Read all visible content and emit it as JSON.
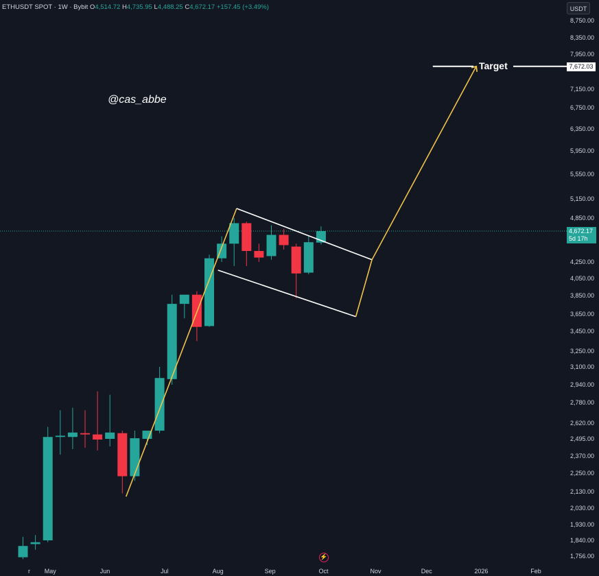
{
  "header": {
    "symbol": "ETHUSDT SPOT · 1W · Bybit",
    "o_label": "O",
    "o_value": "4,514.72",
    "h_label": "H",
    "h_value": "4,735.95",
    "l_label": "L",
    "l_value": "4,488.25",
    "c_label": "C",
    "c_value": "4,672.17",
    "change": "+157.45 (+3.49%)"
  },
  "watermark": "@cas_abbe",
  "currency_button": "USDT",
  "price_tag": {
    "price": "4,672.17",
    "countdown": "5d 17h"
  },
  "target": {
    "label": "Target",
    "value": "7,672.03"
  },
  "colors": {
    "background": "#131722",
    "up": "#26a69a",
    "down": "#f23645",
    "trend": "#f0c24b",
    "channel": "#ffffff",
    "text": "#d1d4dc"
  },
  "chart_data": {
    "type": "candlestick",
    "timeframe": "1W",
    "y_tick_labels": [
      "8,750.00",
      "8,350.00",
      "7,950.00",
      "7,150.00",
      "6,750.00",
      "6,350.00",
      "5,950.00",
      "5,550.00",
      "5,150.00",
      "4,850.00",
      "4,250.00",
      "4,050.00",
      "3,850.00",
      "3,650.00",
      "3,450.00",
      "3,250.00",
      "3,100.00",
      "2,940.00",
      "2,780.00",
      "2,620.00",
      "2,495.00",
      "2,370.00",
      "2,250.00",
      "2,130.00",
      "2,030.00",
      "1,930.00",
      "1,840.00",
      "1,756.00"
    ],
    "y_ticks": [
      8750,
      8350,
      7950,
      7150,
      6750,
      6350,
      5950,
      5550,
      5150,
      4850,
      4250,
      4050,
      3850,
      3650,
      3450,
      3250,
      3100,
      2940,
      2780,
      2620,
      2495,
      2370,
      2250,
      2130,
      2030,
      1930,
      1840,
      1756
    ],
    "x_labels": [
      {
        "label": "r",
        "week": 0.5
      },
      {
        "label": "May",
        "week": 2.2
      },
      {
        "label": "Jun",
        "week": 6.6
      },
      {
        "label": "Jul",
        "week": 11.4
      },
      {
        "label": "Aug",
        "week": 15.7
      },
      {
        "label": "Sep",
        "week": 19.9
      },
      {
        "label": "Oct",
        "week": 24.2
      },
      {
        "label": "Nov",
        "week": 28.4
      },
      {
        "label": "Dec",
        "week": 32.5
      },
      {
        "label": "2026",
        "week": 36.9
      },
      {
        "label": "Feb",
        "week": 41.3
      }
    ],
    "candles": [
      {
        "o": 1750,
        "h": 1860,
        "l": 1740,
        "c": 1810
      },
      {
        "o": 1820,
        "h": 1870,
        "l": 1790,
        "c": 1830
      },
      {
        "o": 1840,
        "h": 2590,
        "l": 1830,
        "c": 2510
      },
      {
        "o": 2510,
        "h": 2720,
        "l": 2380,
        "c": 2520
      },
      {
        "o": 2510,
        "h": 2740,
        "l": 2420,
        "c": 2545
      },
      {
        "o": 2540,
        "h": 2720,
        "l": 2430,
        "c": 2530
      },
      {
        "o": 2530,
        "h": 2880,
        "l": 2410,
        "c": 2490
      },
      {
        "o": 2495,
        "h": 2850,
        "l": 2440,
        "c": 2545
      },
      {
        "o": 2540,
        "h": 2560,
        "l": 2120,
        "c": 2230
      },
      {
        "o": 2230,
        "h": 2560,
        "l": 2200,
        "c": 2500
      },
      {
        "o": 2495,
        "h": 2560,
        "l": 2450,
        "c": 2560
      },
      {
        "o": 2560,
        "h": 3100,
        "l": 2540,
        "c": 3000
      },
      {
        "o": 2990,
        "h": 3860,
        "l": 2940,
        "c": 3760
      },
      {
        "o": 3760,
        "h": 3860,
        "l": 3600,
        "c": 3860
      },
      {
        "o": 3860,
        "h": 3900,
        "l": 3350,
        "c": 3500
      },
      {
        "o": 3510,
        "h": 4350,
        "l": 3500,
        "c": 4300
      },
      {
        "o": 4300,
        "h": 4600,
        "l": 4250,
        "c": 4500
      },
      {
        "o": 4500,
        "h": 4850,
        "l": 4200,
        "c": 4780
      },
      {
        "o": 4780,
        "h": 4800,
        "l": 4200,
        "c": 4400
      },
      {
        "o": 4400,
        "h": 4500,
        "l": 4250,
        "c": 4310
      },
      {
        "o": 4330,
        "h": 4750,
        "l": 4280,
        "c": 4620
      },
      {
        "o": 4620,
        "h": 4700,
        "l": 4420,
        "c": 4480
      },
      {
        "o": 4460,
        "h": 4500,
        "l": 3820,
        "c": 4110
      },
      {
        "o": 4120,
        "h": 4610,
        "l": 4100,
        "c": 4520
      },
      {
        "o": 4514.72,
        "h": 4735.95,
        "l": 4488.25,
        "c": 4672.17
      }
    ],
    "current_price": 4672.17,
    "target_price": 7672.03,
    "annotations": {
      "trend_line": [
        {
          "week": 8.3,
          "price": 2100
        },
        {
          "week": 17.2,
          "price": 5000
        }
      ],
      "channel_upper": [
        {
          "week": 17.2,
          "price": 5000
        },
        {
          "week": 28.1,
          "price": 4280
        }
      ],
      "channel_lower": [
        {
          "week": 15.7,
          "price": 4150
        },
        {
          "week": 26.8,
          "price": 3620
        }
      ],
      "projection": [
        {
          "week": 26.8,
          "price": 3620
        },
        {
          "week": 28.1,
          "price": 4280
        },
        {
          "week": 36.5,
          "price": 7672.03
        }
      ],
      "target_line_weeks": [
        33.0,
        44.5
      ]
    }
  }
}
